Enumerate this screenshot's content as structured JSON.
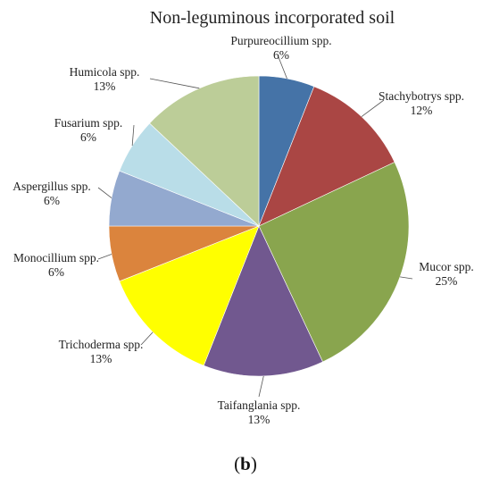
{
  "chart_data": {
    "type": "pie",
    "title": "Non-leguminous incorporated soil",
    "panel_label": "b",
    "slices": [
      {
        "name": "Purpureocillium spp.",
        "value": 6,
        "value_label": "6%",
        "color": "#4573a7"
      },
      {
        "name": "Stachybotrys spp.",
        "value": 12,
        "value_label": "12%",
        "color": "#aa4644"
      },
      {
        "name": "Mucor spp.",
        "value": 25,
        "value_label": "25%",
        "color": "#89a54e"
      },
      {
        "name": "Taifanglania spp.",
        "value": 13,
        "value_label": "13%",
        "color": "#71588f"
      },
      {
        "name": "Trichoderma spp.",
        "value": 13,
        "value_label": "13%",
        "color": "#ffff00"
      },
      {
        "name": "Monocillium spp.",
        "value": 6,
        "value_label": "6%",
        "color": "#db843d"
      },
      {
        "name": "Aspergillus spp.",
        "value": 6,
        "value_label": "6%",
        "color": "#93a9cf"
      },
      {
        "name": "Fusarium spp.",
        "value": 6,
        "value_label": "6%",
        "color": "#b9dde8"
      },
      {
        "name": "Humicola spp.",
        "value": 13,
        "value_label": "13%",
        "color": "#bccd98"
      }
    ]
  }
}
